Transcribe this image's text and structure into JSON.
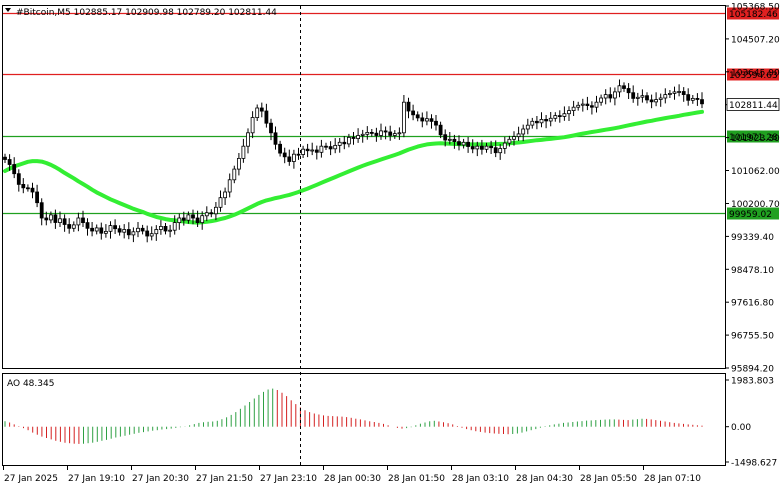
{
  "header": {
    "symbol_line": "#Bitcoin,M5  102885.17 102909.98 102789.20 102811.44"
  },
  "indicator": {
    "title": "AO 48.345"
  },
  "colors": {
    "candle": "#000000",
    "ma": "#33ee33",
    "resistance": "#e02020",
    "support": "#20a020",
    "ao_up": "#2ea043",
    "ao_down": "#d42020",
    "crosshair": "#000000"
  },
  "price_axis": {
    "labels": [
      "105368.50",
      "104507.20",
      "103645.90",
      "102784.60",
      "101923.30",
      "101062.00",
      "100200.70",
      "99339.40",
      "98478.10",
      "97616.80",
      "96755.50",
      "95894.20"
    ],
    "current_price": "102811.44"
  },
  "levels": [
    {
      "name": "resistance-1",
      "value": 105182.46,
      "label": "105182.46",
      "kind": "resistance"
    },
    {
      "name": "resistance-2",
      "value": 103594.63,
      "label": "103594.63",
      "kind": "resistance"
    },
    {
      "name": "support-1",
      "value": 101971.28,
      "label": "101971.28",
      "kind": "support"
    },
    {
      "name": "support-2",
      "value": 99959.02,
      "label": "99959.02",
      "kind": "support"
    }
  ],
  "ao_axis": {
    "labels": [
      "1983.803",
      "0.00",
      "-1498.627"
    ]
  },
  "time_axis": {
    "labels": [
      "27 Jan 2025",
      "27 Jan 19:10",
      "27 Jan 20:30",
      "27 Jan 21:50",
      "27 Jan 23:10",
      "28 Jan 00:30",
      "28 Jan 01:50",
      "28 Jan 03:10",
      "28 Jan 04:30",
      "28 Jan 05:50",
      "28 Jan 07:10"
    ]
  },
  "chart_data": {
    "type": "candlestick",
    "symbol": "#Bitcoin",
    "timeframe": "M5",
    "ohlc_last": {
      "open": 102885.17,
      "high": 102909.98,
      "low": 102789.2,
      "close": 102811.44
    },
    "ylim": [
      95894.2,
      105368.5
    ],
    "close_series": [
      101350,
      101220,
      100980,
      100700,
      100610,
      100600,
      100500,
      100220,
      99820,
      99770,
      99900,
      99700,
      99800,
      99650,
      99550,
      99640,
      99820,
      99700,
      99550,
      99480,
      99560,
      99420,
      99470,
      99620,
      99540,
      99450,
      99520,
      99380,
      99460,
      99550,
      99480,
      99350,
      99410,
      99520,
      99600,
      99480,
      99500,
      99700,
      99820,
      99760,
      99900,
      99820,
      99700,
      99880,
      99960,
      99930,
      100100,
      100350,
      100500,
      100820,
      101100,
      101380,
      101700,
      102050,
      102450,
      102700,
      102620,
      102300,
      102050,
      101750,
      101520,
      101420,
      101300,
      101490,
      101480,
      101620,
      101580,
      101600,
      101540,
      101700,
      101690,
      101630,
      101720,
      101800,
      101760,
      101930,
      101900,
      101980,
      102010,
      102060,
      102040,
      101980,
      102100,
      102070,
      101980,
      102030,
      102050,
      102850,
      102620,
      102520,
      102440,
      102360,
      102420,
      102350,
      102250,
      102000,
      101860,
      101880,
      101820,
      101730,
      101800,
      101690,
      101630,
      101700,
      101620,
      101700,
      101660,
      101530,
      101640,
      101780,
      101880,
      101950,
      102020,
      102150,
      102250,
      102350,
      102310,
      102400,
      102360,
      102430,
      102500,
      102480,
      102550,
      102630,
      102720,
      102770,
      102800,
      102760,
      102720,
      102850,
      102960,
      103050,
      102960,
      103120,
      103280,
      103210,
      103100,
      102950,
      102980,
      103020,
      102910,
      102860,
      102920,
      102960,
      103050,
      103080,
      103120,
      103130,
      103050,
      102900,
      102950,
      102920,
      102811
    ],
    "moving_average": [
      101050,
      101110,
      101170,
      101210,
      101250,
      101290,
      101310,
      101310,
      101295,
      101260,
      101210,
      101150,
      101080,
      101000,
      100930,
      100860,
      100780,
      100710,
      100640,
      100560,
      100490,
      100430,
      100370,
      100310,
      100260,
      100210,
      100160,
      100110,
      100060,
      100020,
      99980,
      99930,
      99890,
      99850,
      99820,
      99790,
      99770,
      99760,
      99740,
      99730,
      99715,
      99705,
      99700,
      99710,
      99720,
      99740,
      99760,
      99790,
      99820,
      99860,
      99905,
      99955,
      100010,
      100070,
      100130,
      100190,
      100240,
      100280,
      100310,
      100340,
      100365,
      100395,
      100425,
      100460,
      100500,
      100545,
      100590,
      100640,
      100690,
      100740,
      100790,
      100840,
      100890,
      100940,
      100990,
      101040,
      101090,
      101140,
      101185,
      101230,
      101270,
      101310,
      101350,
      101390,
      101430,
      101470,
      101510,
      101560,
      101610,
      101650,
      101690,
      101720,
      101745,
      101760,
      101770,
      101775,
      101770,
      101765,
      101760,
      101755,
      101750,
      101745,
      101745,
      101745,
      101745,
      101745,
      101750,
      101755,
      101760,
      101765,
      101775,
      101785,
      101795,
      101810,
      101825,
      101840,
      101855,
      101865,
      101880,
      101890,
      101905,
      101920,
      101935,
      101955,
      101980,
      102005,
      102030,
      102050,
      102070,
      102090,
      102110,
      102130,
      102150,
      102170,
      102195,
      102220,
      102245,
      102270,
      102295,
      102320,
      102345,
      102365,
      102390,
      102410,
      102435,
      102455,
      102475,
      102495,
      102520,
      102540,
      102560,
      102580,
      102600
    ],
    "ao_values": [
      230,
      180,
      100,
      20,
      -60,
      -150,
      -250,
      -340,
      -420,
      -480,
      -540,
      -600,
      -640,
      -680,
      -700,
      -720,
      -730,
      -720,
      -700,
      -680,
      -640,
      -600,
      -560,
      -510,
      -460,
      -420,
      -380,
      -340,
      -300,
      -260,
      -230,
      -200,
      -170,
      -150,
      -120,
      -100,
      -80,
      -50,
      -20,
      10,
      60,
      110,
      160,
      190,
      210,
      220,
      250,
      320,
      400,
      500,
      620,
      760,
      900,
      1050,
      1200,
      1350,
      1480,
      1580,
      1620,
      1560,
      1440,
      1300,
      1120,
      960,
      820,
      700,
      620,
      560,
      520,
      480,
      460,
      450,
      440,
      430,
      410,
      380,
      340,
      310,
      270,
      230,
      200,
      160,
      120,
      60,
      0,
      -50,
      -80,
      -60,
      -20,
      60,
      130,
      180,
      230,
      250,
      220,
      190,
      150,
      100,
      30,
      -40,
      -100,
      -150,
      -190,
      -220,
      -250,
      -270,
      -290,
      -300,
      -310,
      -320,
      -310,
      -290,
      -250,
      -200,
      -150,
      -100,
      -40,
      20,
      60,
      100,
      130,
      160,
      180,
      200,
      220,
      240,
      260,
      270,
      280,
      290,
      300,
      310,
      310,
      300,
      290,
      280,
      300,
      320,
      340,
      330,
      310,
      280,
      250,
      220,
      190,
      160,
      140,
      120,
      100,
      80,
      60,
      48
    ],
    "ao_ylim": [
      -1498.627,
      1983.803
    ],
    "x_labels": [
      "27 Jan 2025",
      "27 Jan 19:10",
      "27 Jan 20:30",
      "27 Jan 21:50",
      "27 Jan 23:10",
      "28 Jan 00:30",
      "28 Jan 01:50",
      "28 Jan 03:10",
      "28 Jan 04:30",
      "28 Jan 05:50",
      "28 Jan 07:10"
    ],
    "grid": false,
    "legend": "none"
  }
}
